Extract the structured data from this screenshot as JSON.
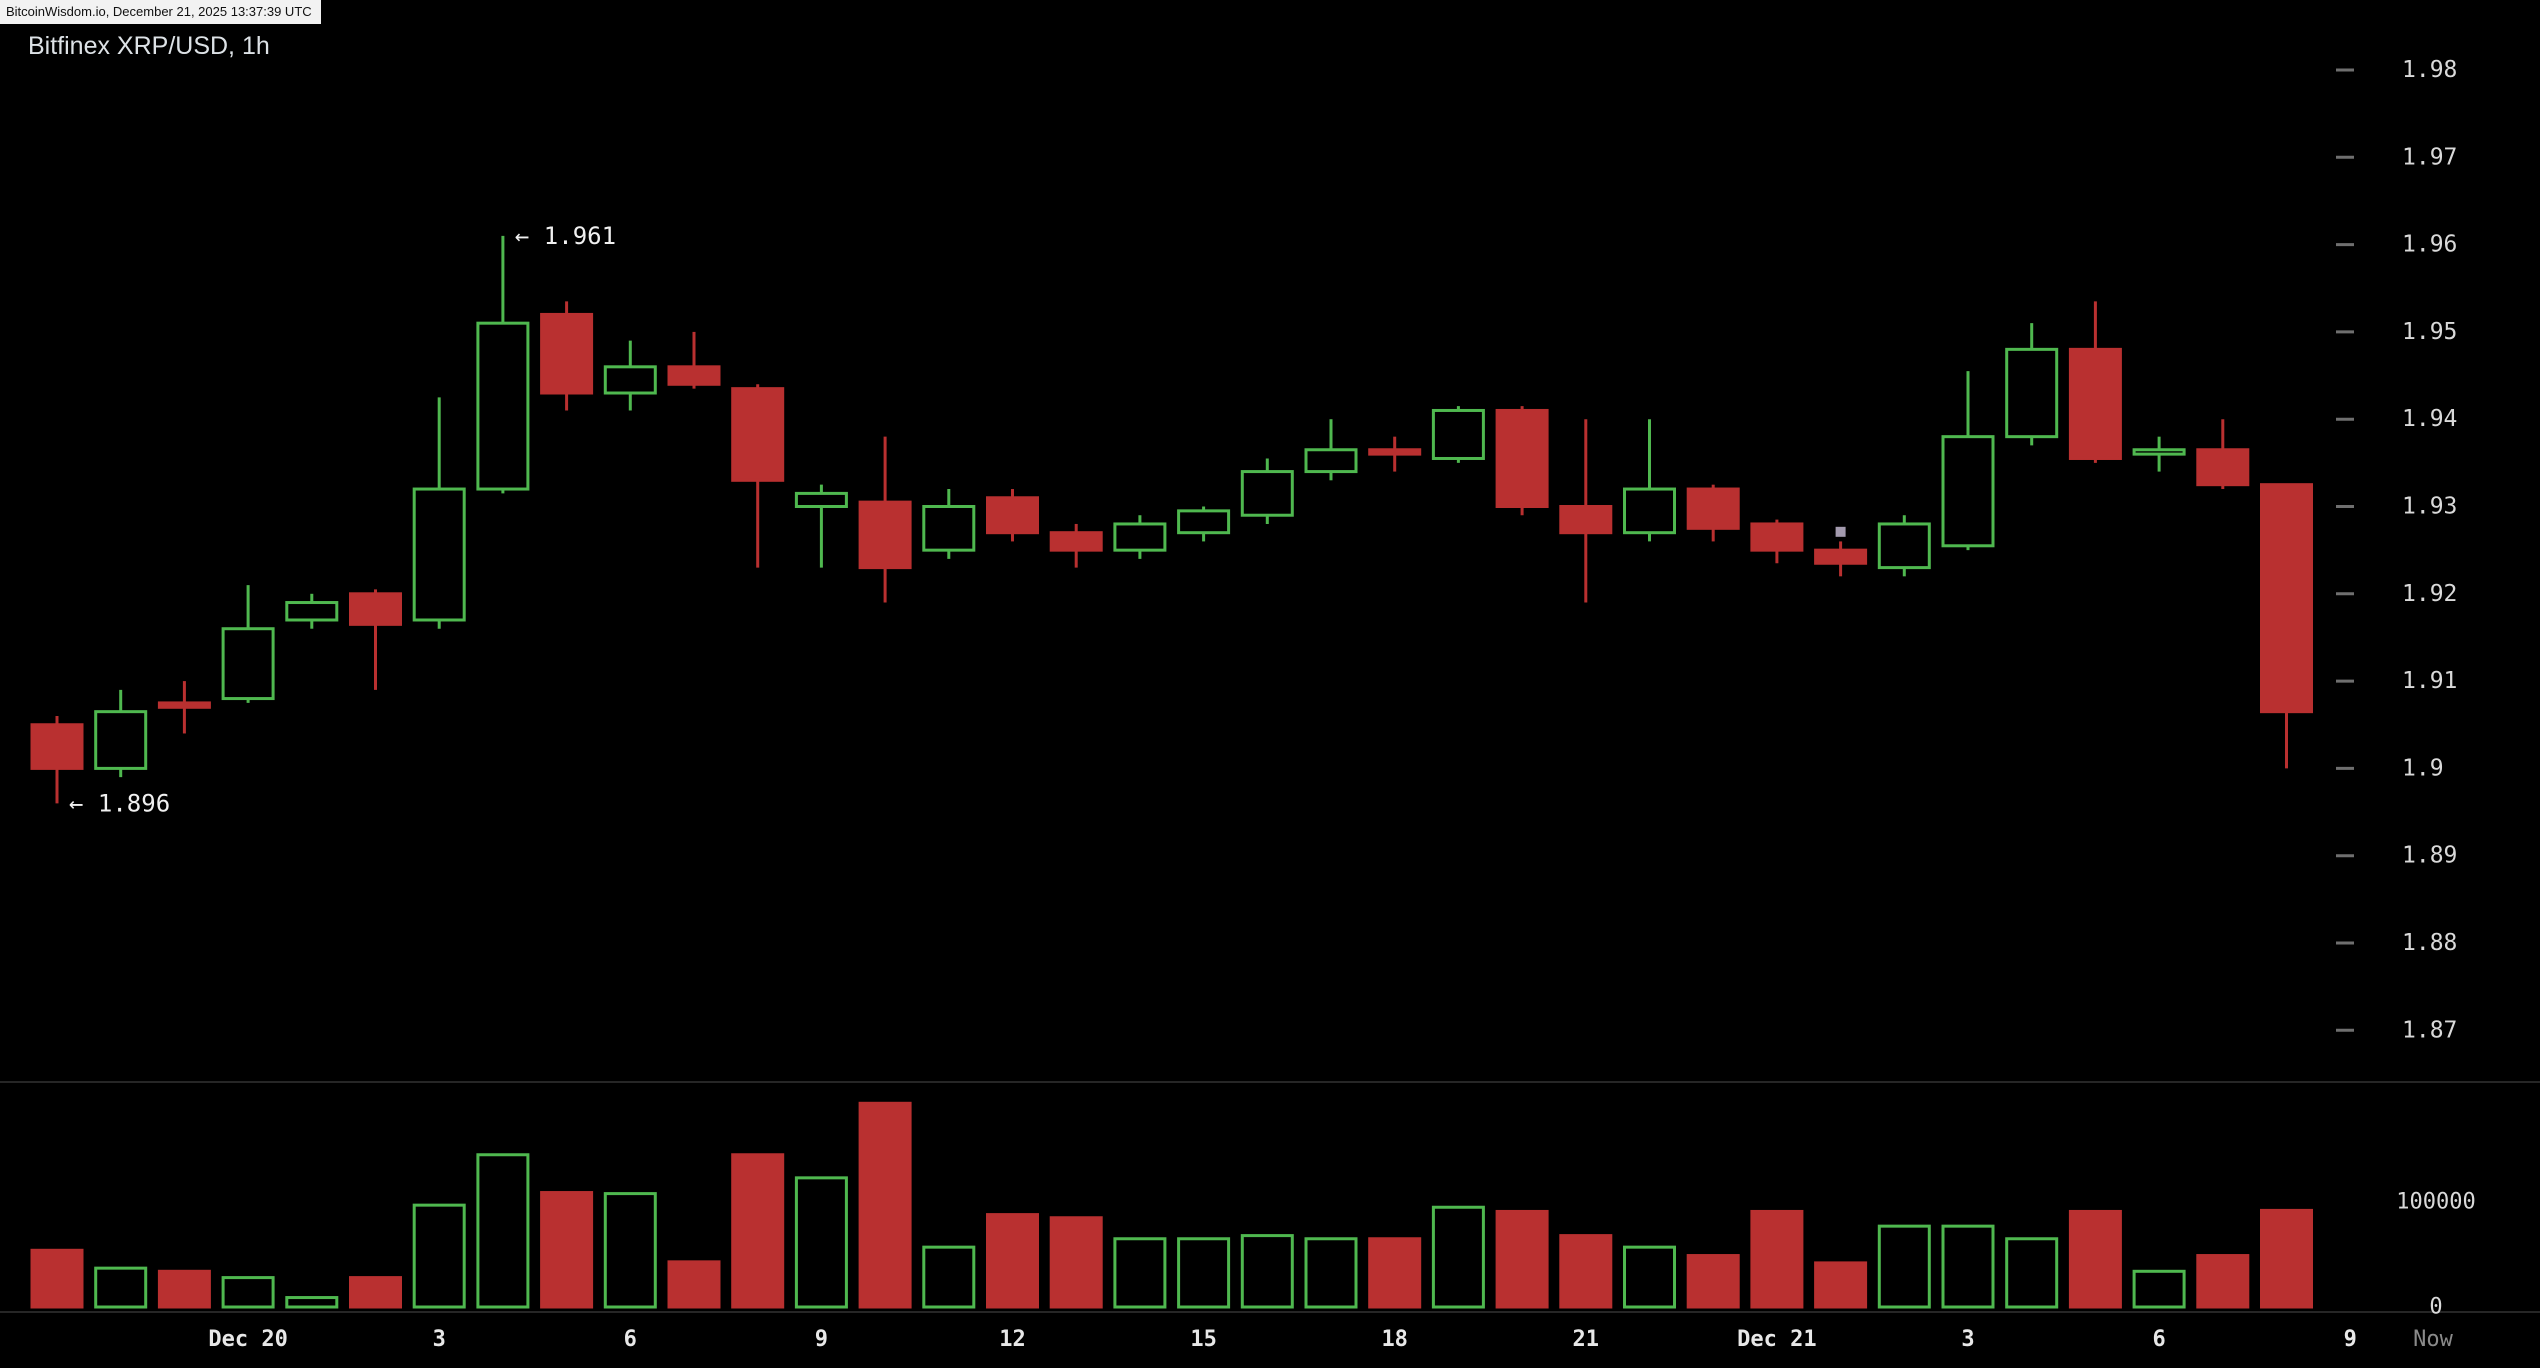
{
  "header": {
    "watermark": "BitcoinWisdom.io, December 21, 2025 13:37:39 UTC",
    "title": "Bitfinex XRP/USD, 1h"
  },
  "colors": {
    "background": "#000000",
    "up": "#4fb84f",
    "down": "#b93030",
    "wick_up": "#4fb84f",
    "wick_down": "#b93030",
    "price_text": "#d9d9d9",
    "time_text": "#e8e8e8",
    "muted_text": "#8a8a8a",
    "tick_dash": "#6f6f6f",
    "separator": "#262626",
    "annotation_text": "#f0f0f0",
    "marker": "#a39aae"
  },
  "chart_data": {
    "type": "candlestick",
    "title": "Bitfinex XRP/USD, 1h",
    "interval": "1h",
    "price_axis": {
      "max": 1.98,
      "min": 1.87,
      "step": 0.01,
      "ticks": [
        {
          "label": "1.98",
          "value": 1.98
        },
        {
          "label": "1.97",
          "value": 1.97
        },
        {
          "label": "1.96",
          "value": 1.96
        },
        {
          "label": "1.95",
          "value": 1.95
        },
        {
          "label": "1.94",
          "value": 1.94
        },
        {
          "label": "1.93",
          "value": 1.93
        },
        {
          "label": "1.92",
          "value": 1.92
        },
        {
          "label": "1.91",
          "value": 1.91
        },
        {
          "label": "1.9",
          "value": 1.9
        },
        {
          "label": "1.89",
          "value": 1.89
        },
        {
          "label": "1.88",
          "value": 1.88
        },
        {
          "label": "1.87",
          "value": 1.87
        }
      ]
    },
    "volume_axis": {
      "ticks": [
        {
          "label": "100000",
          "value": 100000
        },
        {
          "label": "0",
          "value": 0
        }
      ]
    },
    "time_axis": [
      {
        "label": "Dec 20",
        "index": 3,
        "style": "date"
      },
      {
        "label": "3",
        "index": 6,
        "style": "hour"
      },
      {
        "label": "6",
        "index": 9,
        "style": "hour"
      },
      {
        "label": "9",
        "index": 12,
        "style": "hour"
      },
      {
        "label": "12",
        "index": 15,
        "style": "hour"
      },
      {
        "label": "15",
        "index": 18,
        "style": "hour"
      },
      {
        "label": "18",
        "index": 21,
        "style": "hour"
      },
      {
        "label": "21",
        "index": 24,
        "style": "hour"
      },
      {
        "label": "Dec 21",
        "index": 27,
        "style": "date"
      },
      {
        "label": "3",
        "index": 30,
        "style": "hour"
      },
      {
        "label": "6",
        "index": 33,
        "style": "hour"
      },
      {
        "label": "9",
        "index": 36,
        "style": "hour"
      },
      {
        "label": "Now",
        "index": 37.3,
        "style": "now"
      }
    ],
    "annotations": [
      {
        "text": "← 1.961",
        "candle_index": 7,
        "price": 1.961
      },
      {
        "text": "← 1.896",
        "candle_index": 0,
        "price": 1.896
      }
    ],
    "marker": {
      "candle_index": 28,
      "price": 1.9271
    },
    "candles": [
      {
        "o": 1.905,
        "h": 1.906,
        "l": 1.896,
        "c": 1.9,
        "v": 54000
      },
      {
        "o": 1.9,
        "h": 1.909,
        "l": 1.899,
        "c": 1.9065,
        "v": 37000
      },
      {
        "o": 1.9075,
        "h": 1.91,
        "l": 1.904,
        "c": 1.907,
        "v": 34000
      },
      {
        "o": 1.908,
        "h": 1.921,
        "l": 1.9075,
        "c": 1.916,
        "v": 28000
      },
      {
        "o": 1.917,
        "h": 1.92,
        "l": 1.916,
        "c": 1.919,
        "v": 9000
      },
      {
        "o": 1.92,
        "h": 1.9205,
        "l": 1.909,
        "c": 1.9165,
        "v": 28000
      },
      {
        "o": 1.917,
        "h": 1.9425,
        "l": 1.916,
        "c": 1.932,
        "v": 97000
      },
      {
        "o": 1.932,
        "h": 1.961,
        "l": 1.9315,
        "c": 1.951,
        "v": 145000
      },
      {
        "o": 1.952,
        "h": 1.9535,
        "l": 1.941,
        "c": 1.943,
        "v": 109000
      },
      {
        "o": 1.943,
        "h": 1.949,
        "l": 1.941,
        "c": 1.946,
        "v": 108000
      },
      {
        "o": 1.946,
        "h": 1.95,
        "l": 1.9435,
        "c": 1.944,
        "v": 43000
      },
      {
        "o": 1.9435,
        "h": 1.944,
        "l": 1.923,
        "c": 1.933,
        "v": 145000
      },
      {
        "o": 1.93,
        "h": 1.9325,
        "l": 1.923,
        "c": 1.9315,
        "v": 123000
      },
      {
        "o": 1.9305,
        "h": 1.938,
        "l": 1.919,
        "c": 1.923,
        "v": 194000
      },
      {
        "o": 1.925,
        "h": 1.932,
        "l": 1.924,
        "c": 1.93,
        "v": 57000
      },
      {
        "o": 1.931,
        "h": 1.932,
        "l": 1.926,
        "c": 1.927,
        "v": 88000
      },
      {
        "o": 1.927,
        "h": 1.928,
        "l": 1.923,
        "c": 1.925,
        "v": 85000
      },
      {
        "o": 1.925,
        "h": 1.929,
        "l": 1.924,
        "c": 1.928,
        "v": 65000
      },
      {
        "o": 1.927,
        "h": 1.93,
        "l": 1.926,
        "c": 1.9295,
        "v": 65000
      },
      {
        "o": 1.929,
        "h": 1.9355,
        "l": 1.928,
        "c": 1.934,
        "v": 68000
      },
      {
        "o": 1.934,
        "h": 1.94,
        "l": 1.933,
        "c": 1.9365,
        "v": 65000
      },
      {
        "o": 1.9365,
        "h": 1.938,
        "l": 1.934,
        "c": 1.936,
        "v": 65000
      },
      {
        "o": 1.9355,
        "h": 1.9415,
        "l": 1.935,
        "c": 1.941,
        "v": 95000
      },
      {
        "o": 1.941,
        "h": 1.9415,
        "l": 1.929,
        "c": 1.93,
        "v": 91000
      },
      {
        "o": 1.93,
        "h": 1.94,
        "l": 1.919,
        "c": 1.927,
        "v": 68000
      },
      {
        "o": 1.927,
        "h": 1.94,
        "l": 1.926,
        "c": 1.932,
        "v": 57000
      },
      {
        "o": 1.932,
        "h": 1.9325,
        "l": 1.926,
        "c": 1.9275,
        "v": 49000
      },
      {
        "o": 1.928,
        "h": 1.9285,
        "l": 1.9235,
        "c": 1.925,
        "v": 91000
      },
      {
        "o": 1.925,
        "h": 1.926,
        "l": 1.922,
        "c": 1.9235,
        "v": 42000
      },
      {
        "o": 1.923,
        "h": 1.929,
        "l": 1.922,
        "c": 1.928,
        "v": 77000
      },
      {
        "o": 1.9255,
        "h": 1.9455,
        "l": 1.925,
        "c": 1.938,
        "v": 77000
      },
      {
        "o": 1.938,
        "h": 1.951,
        "l": 1.937,
        "c": 1.948,
        "v": 65000
      },
      {
        "o": 1.948,
        "h": 1.9535,
        "l": 1.935,
        "c": 1.9355,
        "v": 91000
      },
      {
        "o": 1.936,
        "h": 1.938,
        "l": 1.934,
        "c": 1.9365,
        "v": 34000
      },
      {
        "o": 1.9365,
        "h": 1.94,
        "l": 1.932,
        "c": 1.9325,
        "v": 49000
      },
      {
        "o": 1.9325,
        "h": 1.9325,
        "l": 1.9,
        "c": 1.9065,
        "v": 92000
      }
    ]
  }
}
